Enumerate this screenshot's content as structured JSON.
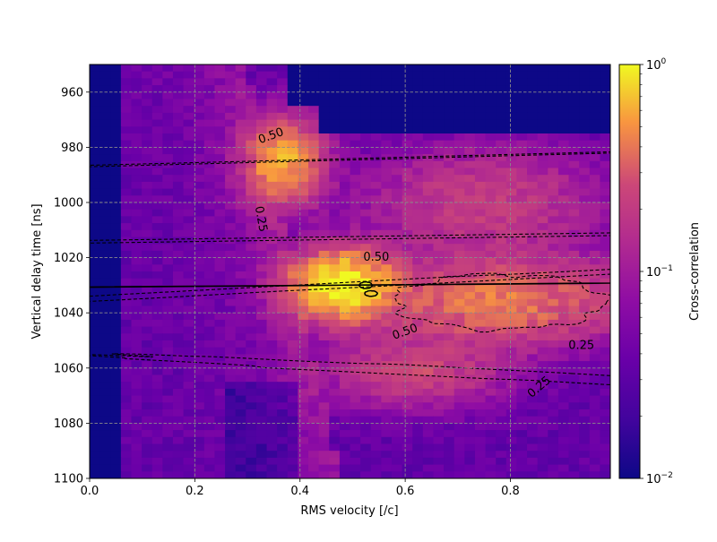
{
  "chart_data": {
    "type": "heatmap",
    "xlabel": "RMS velocity [/c]",
    "ylabel": "Vertical delay time [ns]",
    "colorbar_label": "Cross-correlation",
    "xlim": [
      0.0,
      0.99
    ],
    "ylim": [
      950,
      1100
    ],
    "y_inverted": true,
    "x_ticks": [
      {
        "value": 0.0,
        "label": "0.0"
      },
      {
        "value": 0.2,
        "label": "0.2"
      },
      {
        "value": 0.4,
        "label": "0.4"
      },
      {
        "value": 0.6,
        "label": "0.6"
      },
      {
        "value": 0.8,
        "label": "0.8"
      }
    ],
    "y_ticks": [
      {
        "value": 960,
        "label": "960"
      },
      {
        "value": 980,
        "label": "980"
      },
      {
        "value": 1000,
        "label": "1000"
      },
      {
        "value": 1020,
        "label": "1020"
      },
      {
        "value": 1040,
        "label": "1040"
      },
      {
        "value": 1060,
        "label": "1060"
      },
      {
        "value": 1080,
        "label": "1080"
      },
      {
        "value": 1100,
        "label": "1100"
      }
    ],
    "colorbar": {
      "scale": "log",
      "range": [
        0.01,
        1
      ],
      "colormap": "plasma",
      "ticks": [
        {
          "value": 1,
          "base": "10",
          "exp": "0"
        },
        {
          "value": 0.1,
          "base": "10",
          "exp": "−1"
        },
        {
          "value": 0.01,
          "base": "10",
          "exp": "−2"
        }
      ]
    },
    "grid": true,
    "grid_color": "#8a8a8a",
    "contour_levels": [
      0.25,
      0.5
    ],
    "contour_labels": [
      {
        "text": "0.50",
        "x": 0.345,
        "y": 976,
        "angle": -20
      },
      {
        "text": "0.25",
        "x": 0.325,
        "y": 1006,
        "angle": 80
      },
      {
        "text": "0.50",
        "x": 0.545,
        "y": 1020,
        "angle": 0
      },
      {
        "text": "0.50",
        "x": 0.6,
        "y": 1047,
        "angle": -20
      },
      {
        "text": "0.25",
        "x": 0.935,
        "y": 1052,
        "angle": 0
      },
      {
        "text": "0.25",
        "x": 0.855,
        "y": 1067,
        "angle": -40
      }
    ],
    "peak": {
      "x": 0.48,
      "y": 1030,
      "value": 1.0
    }
  }
}
